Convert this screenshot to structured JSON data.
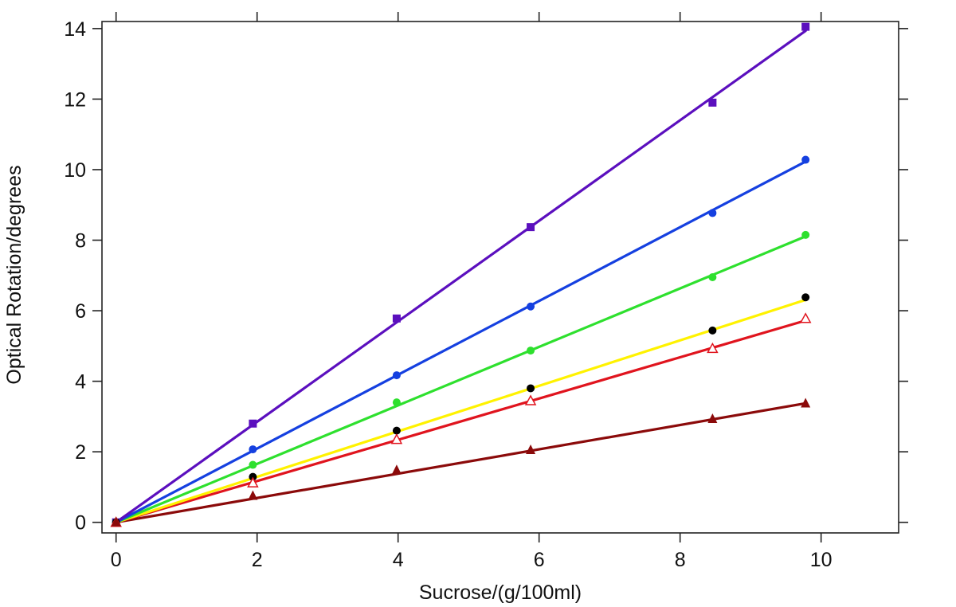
{
  "chart_data": {
    "type": "scatter",
    "title": "",
    "xlabel": "Sucrose/(g/100ml)",
    "ylabel": "Optical Rotation/degrees",
    "xlim": [
      -0.2,
      11.1
    ],
    "ylim": [
      -0.3,
      14.2
    ],
    "xticks": [
      0,
      2,
      4,
      6,
      8,
      10
    ],
    "yticks": [
      0,
      2,
      4,
      6,
      8,
      10,
      12,
      14
    ],
    "x_tick_labels": [
      "0",
      "2",
      "4",
      "6",
      "8",
      "10"
    ],
    "y_tick_labels": [
      "0",
      "2",
      "4",
      "6",
      "8",
      "10",
      "12",
      "14"
    ],
    "grid": false,
    "mirror_ticks": true,
    "x": [
      0,
      1.94,
      3.98,
      5.88,
      8.46,
      9.78
    ],
    "series": [
      {
        "name": "violet",
        "color": "#5B0FBE",
        "marker": "square",
        "values": [
          0,
          2.8,
          5.78,
          8.37,
          11.9,
          14.05
        ],
        "fit_slope": 1.425
      },
      {
        "name": "blue",
        "color": "#1540E0",
        "marker": "circle",
        "values": [
          0,
          2.07,
          4.17,
          6.12,
          8.77,
          10.28
        ],
        "fit_slope": 1.046
      },
      {
        "name": "green",
        "color": "#2EE02E",
        "marker": "circle",
        "values": [
          0,
          1.63,
          3.4,
          4.87,
          6.95,
          8.15
        ],
        "fit_slope": 0.829
      },
      {
        "name": "yellow",
        "color": "#FFF200",
        "marker": "black-circle",
        "values": [
          0,
          1.29,
          2.6,
          3.8,
          5.44,
          6.38
        ],
        "fit_slope": 0.645
      },
      {
        "name": "red",
        "color": "#E0141E",
        "marker": "open-triangle",
        "values": [
          0,
          1.12,
          2.35,
          3.45,
          4.93,
          5.78
        ],
        "fit_slope": 0.585
      },
      {
        "name": "dark-red",
        "color": "#8B0A0A",
        "marker": "triangle",
        "values": [
          0,
          0.75,
          1.48,
          2.05,
          2.93,
          3.37
        ],
        "fit_slope": 0.345
      }
    ]
  }
}
